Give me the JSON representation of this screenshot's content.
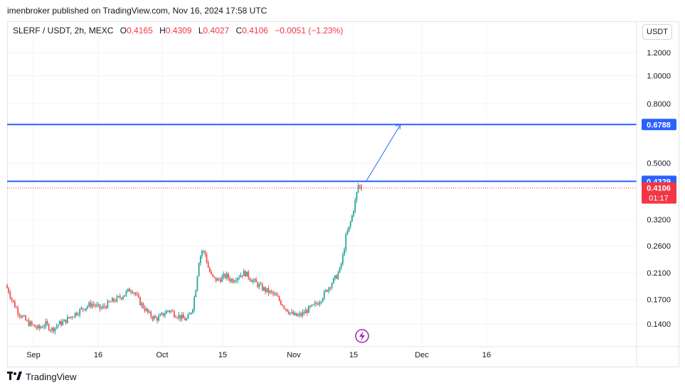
{
  "caption": "imenbroker published on TradingView.com, Nov 16, 2024 17:58 UTC",
  "legend": {
    "symbol": "SLERF / USDT, 2h, MEXC",
    "o_label": "O",
    "o_value": "0.4165",
    "h_label": "H",
    "h_value": "0.4309",
    "l_label": "L",
    "l_value": "0.4027",
    "c_label": "C",
    "c_value": "0.4106",
    "change": "−0.0051 (−1.23%)"
  },
  "currency_button": "USDT",
  "footer": {
    "brand": "TradingView",
    "logo_icon": "tradingview-logo-icon"
  },
  "colors": {
    "up": "#26a69a",
    "down": "#ef5350",
    "level_line": "#2962ff",
    "last_price": "#f23645",
    "arrow": "#2962ff",
    "event": "#9c27b0"
  },
  "chart_data": {
    "type": "candlestick",
    "scale": "log",
    "x_ticks": [
      "Sep",
      "16",
      "Oct",
      "15",
      "Nov",
      "15",
      "Dec",
      "16"
    ],
    "y_ticks": [
      "1.2000",
      "1.0000",
      "0.8000",
      "0.5000",
      "0.3200",
      "0.2600",
      "0.2100",
      "0.1700",
      "0.1400"
    ],
    "horizontal_levels": [
      {
        "value": 0.6788,
        "label": "0.6788"
      },
      {
        "value": 0.4329,
        "label": "0.4329"
      }
    ],
    "last_price": {
      "value": 0.4106,
      "label": "0.4106",
      "countdown": "01:17"
    },
    "projection_arrow": {
      "from": 0.43,
      "to": 0.6788
    },
    "event_marker_icon": "lightning-bolt-icon",
    "price_path": [
      0.19,
      0.182,
      0.17,
      0.162,
      0.155,
      0.15,
      0.146,
      0.142,
      0.14,
      0.138,
      0.136,
      0.135,
      0.138,
      0.14,
      0.137,
      0.134,
      0.136,
      0.139,
      0.141,
      0.142,
      0.145,
      0.148,
      0.15,
      0.153,
      0.155,
      0.158,
      0.16,
      0.162,
      0.164,
      0.163,
      0.16,
      0.158,
      0.16,
      0.163,
      0.166,
      0.168,
      0.17,
      0.172,
      0.175,
      0.178,
      0.182,
      0.185,
      0.18,
      0.172,
      0.165,
      0.16,
      0.155,
      0.15,
      0.148,
      0.146,
      0.147,
      0.15,
      0.153,
      0.156,
      0.155,
      0.152,
      0.15,
      0.148,
      0.146,
      0.145,
      0.15,
      0.16,
      0.185,
      0.23,
      0.25,
      0.245,
      0.22,
      0.205,
      0.2,
      0.198,
      0.2,
      0.203,
      0.205,
      0.2,
      0.198,
      0.202,
      0.205,
      0.208,
      0.21,
      0.205,
      0.2,
      0.196,
      0.192,
      0.188,
      0.185,
      0.182,
      0.18,
      0.178,
      0.175,
      0.17,
      0.165,
      0.16,
      0.156,
      0.152,
      0.15,
      0.149,
      0.15,
      0.152,
      0.155,
      0.158,
      0.16,
      0.163,
      0.167,
      0.172,
      0.178,
      0.185,
      0.192,
      0.198,
      0.205,
      0.215,
      0.24,
      0.28,
      0.3,
      0.33,
      0.37,
      0.42,
      0.4106
    ]
  }
}
